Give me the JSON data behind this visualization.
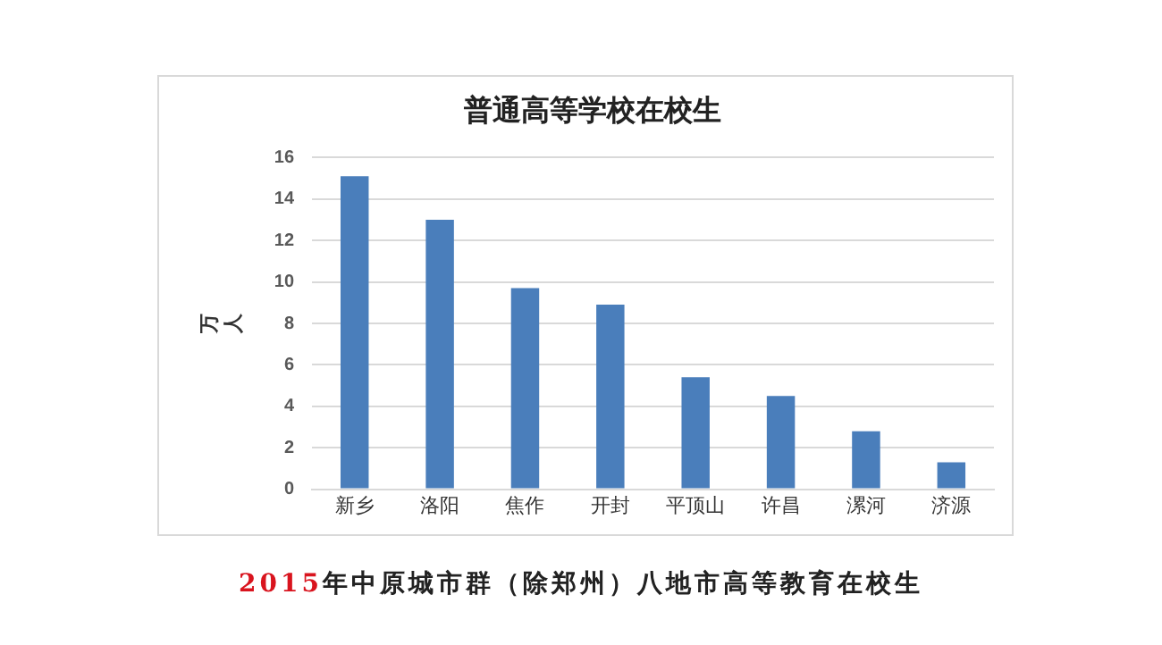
{
  "chart_data": {
    "type": "bar",
    "title": "普通高等学校在校生",
    "ylabel": "万人",
    "categories": [
      "新乡",
      "洛阳",
      "焦作",
      "开封",
      "平顶山",
      "许昌",
      "漯河",
      "济源"
    ],
    "values": [
      15.1,
      13.0,
      9.7,
      8.9,
      5.4,
      4.5,
      2.8,
      1.3
    ],
    "color": "#4a7ebb",
    "ylim": [
      0,
      16
    ],
    "yticks": [
      0,
      2,
      4,
      6,
      8,
      10,
      12,
      14,
      16
    ],
    "grid": "y",
    "annotations": [
      "2015年中原城市群（除郑州）八地市高等教育在校生"
    ]
  }
}
